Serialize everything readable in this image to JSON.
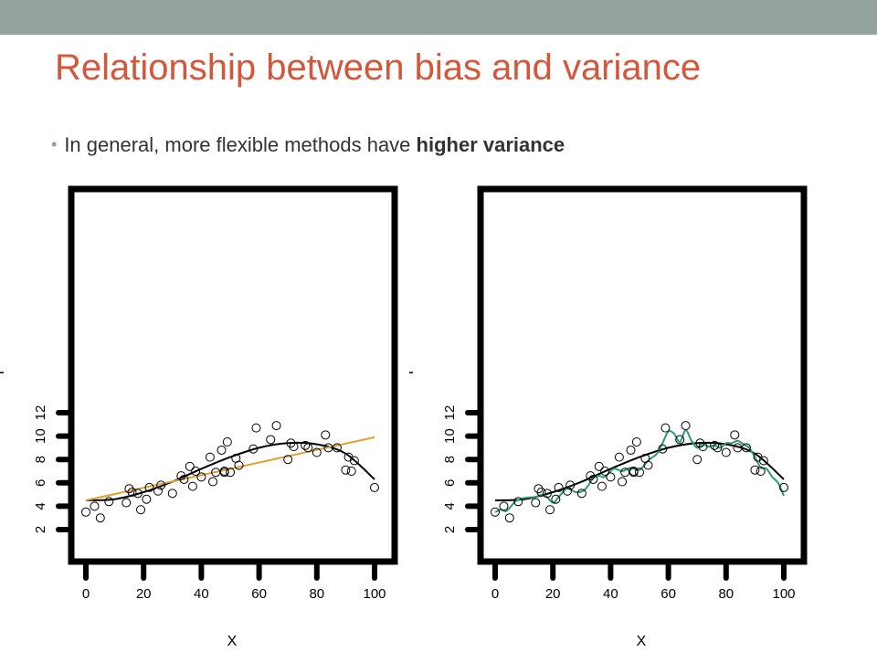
{
  "slide": {
    "title": "Relationship between bias and variance",
    "bullet_prefix": "In general, more flexible methods have ",
    "bullet_bold": "higher variance"
  },
  "colors": {
    "title": "#d3573a",
    "top_bar": "#94a39b",
    "true_curve": "#000000",
    "linear_fit": "#e0a030",
    "flexible_fit": "#2a9a78"
  },
  "chart_data": [
    {
      "type": "scatter",
      "title": "",
      "xlabel": "X",
      "ylabel": "Y",
      "xlim": [
        -5,
        105
      ],
      "ylim": [
        1,
        14
      ],
      "xticks": [
        0,
        20,
        40,
        60,
        80,
        100
      ],
      "yticks": [
        2,
        4,
        6,
        8,
        10,
        12
      ],
      "series": [
        {
          "kind": "points",
          "x": [
            0,
            3,
            5,
            8,
            14,
            15,
            16,
            18,
            19,
            21,
            22,
            25,
            26,
            30,
            33,
            34,
            36,
            37,
            38,
            40,
            43,
            44,
            45,
            47,
            48,
            48,
            49,
            50,
            52,
            53,
            58,
            59,
            64,
            66,
            70,
            71,
            72,
            76,
            77,
            80,
            83,
            84,
            87,
            90,
            91,
            92,
            93,
            100
          ],
          "y": [
            3.5,
            4.0,
            3.0,
            4.4,
            4.3,
            5.5,
            5.2,
            5.1,
            3.7,
            4.6,
            5.6,
            5.3,
            5.8,
            5.1,
            6.6,
            6.3,
            7.4,
            5.7,
            7.0,
            6.5,
            8.2,
            6.1,
            6.9,
            8.8,
            7.0,
            6.9,
            9.5,
            6.9,
            8.1,
            7.5,
            8.9,
            10.7,
            9.7,
            10.9,
            8.0,
            9.4,
            9.1,
            9.2,
            9.0,
            8.6,
            10.1,
            9.0,
            9.0,
            7.1,
            8.2,
            7.0,
            7.9,
            5.6
          ]
        },
        {
          "kind": "line",
          "x": [
            0,
            10,
            20,
            30,
            40,
            50,
            60,
            70,
            80,
            90,
            100
          ],
          "y": [
            4.5,
            4.6,
            5.2,
            6.1,
            7.2,
            8.2,
            9.0,
            9.4,
            9.3,
            8.5,
            6.3
          ]
        },
        {
          "kind": "line",
          "x": [
            0,
            100
          ],
          "y": [
            4.5,
            9.9
          ]
        }
      ]
    },
    {
      "type": "scatter",
      "title": "",
      "xlabel": "X",
      "ylabel": "Y",
      "xlim": [
        -5,
        105
      ],
      "ylim": [
        1,
        14
      ],
      "xticks": [
        0,
        20,
        40,
        60,
        80,
        100
      ],
      "yticks": [
        2,
        4,
        6,
        8,
        10,
        12
      ],
      "series": [
        {
          "kind": "points",
          "x": [
            0,
            3,
            5,
            8,
            14,
            15,
            16,
            18,
            19,
            21,
            22,
            25,
            26,
            30,
            33,
            34,
            36,
            37,
            38,
            40,
            43,
            44,
            45,
            47,
            48,
            48,
            49,
            50,
            52,
            53,
            58,
            59,
            64,
            66,
            70,
            71,
            72,
            76,
            77,
            80,
            83,
            84,
            87,
            90,
            91,
            92,
            93,
            100
          ],
          "y": [
            3.5,
            4.0,
            3.0,
            4.4,
            4.3,
            5.5,
            5.2,
            5.1,
            3.7,
            4.6,
            5.6,
            5.3,
            5.8,
            5.1,
            6.6,
            6.3,
            7.4,
            5.7,
            7.0,
            6.5,
            8.2,
            6.1,
            6.9,
            8.8,
            7.0,
            6.9,
            9.5,
            6.9,
            8.1,
            7.5,
            8.9,
            10.7,
            9.7,
            10.9,
            8.0,
            9.4,
            9.1,
            9.2,
            9.0,
            8.6,
            10.1,
            9.0,
            9.0,
            7.1,
            8.2,
            7.0,
            7.9,
            5.6
          ]
        },
        {
          "kind": "line",
          "x": [
            0,
            10,
            20,
            30,
            40,
            50,
            60,
            70,
            80,
            90,
            100
          ],
          "y": [
            4.5,
            4.6,
            5.2,
            6.1,
            7.2,
            8.2,
            9.0,
            9.4,
            9.3,
            8.5,
            6.3
          ]
        },
        {
          "kind": "line",
          "x": [
            0,
            2,
            4,
            7,
            10,
            14,
            17,
            20,
            22,
            25,
            28,
            31,
            34,
            36,
            38,
            41,
            44,
            47,
            50,
            53,
            56,
            58,
            60,
            62,
            64,
            66,
            68,
            70,
            72,
            74,
            76,
            78,
            80,
            82,
            84,
            86,
            88,
            90,
            92,
            94,
            96,
            98,
            100
          ],
          "y": [
            3.5,
            3.7,
            3.6,
            4.4,
            4.7,
            4.8,
            5.0,
            4.3,
            4.8,
            5.5,
            5.2,
            5.4,
            6.4,
            6.6,
            6.5,
            7.2,
            7.0,
            7.3,
            7.1,
            7.9,
            8.5,
            9.4,
            10.4,
            10.2,
            9.5,
            10.5,
            9.6,
            9.0,
            9.3,
            9.1,
            9.2,
            9.0,
            9.4,
            9.4,
            9.6,
            9.3,
            9.0,
            8.2,
            7.3,
            7.2,
            6.5,
            6.0,
            4.9
          ]
        }
      ]
    }
  ]
}
